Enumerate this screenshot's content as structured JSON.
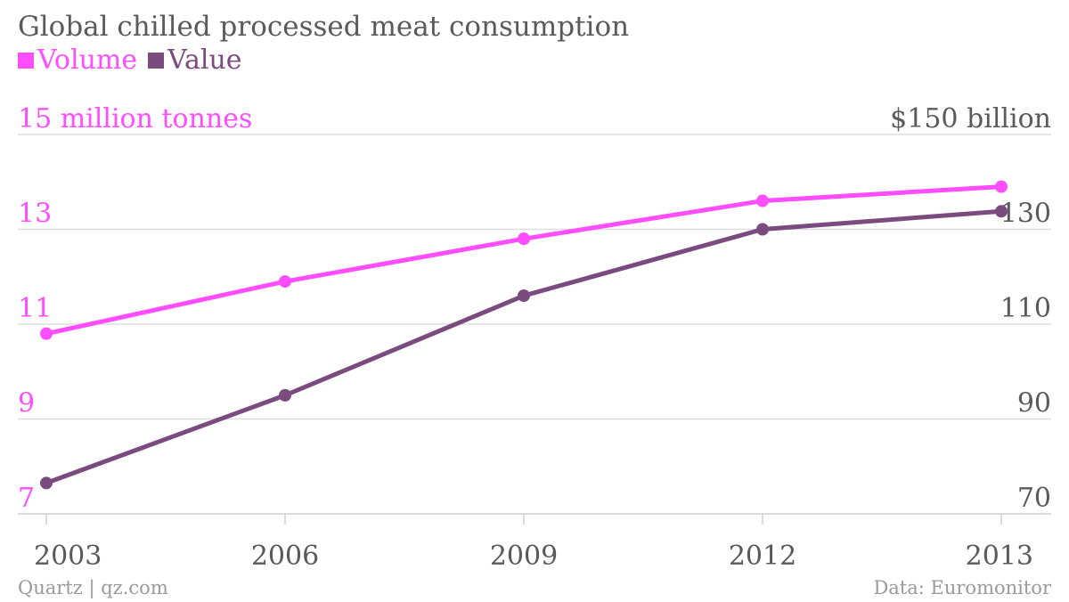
{
  "chart_data": {
    "type": "line",
    "title": "Global chilled processed meat consumption",
    "categories": [
      "2003",
      "2006",
      "2009",
      "2012",
      "2013"
    ],
    "series": [
      {
        "name": "Volume",
        "color": "#ff4dff",
        "axis": "left",
        "values": [
          10.8,
          11.9,
          12.8,
          13.6,
          13.9
        ]
      },
      {
        "name": "Value",
        "color": "#7b4a7e",
        "axis": "right",
        "values": [
          76.5,
          95.0,
          116.0,
          130.0,
          133.8
        ]
      }
    ],
    "y_left": {
      "ylim": [
        7,
        15
      ],
      "ticks": [
        7,
        9,
        11,
        13,
        15
      ],
      "tick_labels": [
        "7",
        "9",
        "11",
        "13",
        "15 million tonnes"
      ]
    },
    "y_right": {
      "ylim": [
        70,
        150
      ],
      "ticks": [
        70,
        90,
        110,
        130,
        150
      ],
      "tick_labels": [
        "70",
        "90",
        "110",
        "130",
        "$150 billion"
      ]
    },
    "grid": true,
    "legend_position": "top-left"
  },
  "footer": {
    "source_left": "Quartz | qz.com",
    "source_right": "Data: Euromonitor"
  },
  "colors": {
    "volume": "#ff4dff",
    "value": "#7b4a7e",
    "text": "#5a5a5a",
    "grid": "#dedede"
  }
}
